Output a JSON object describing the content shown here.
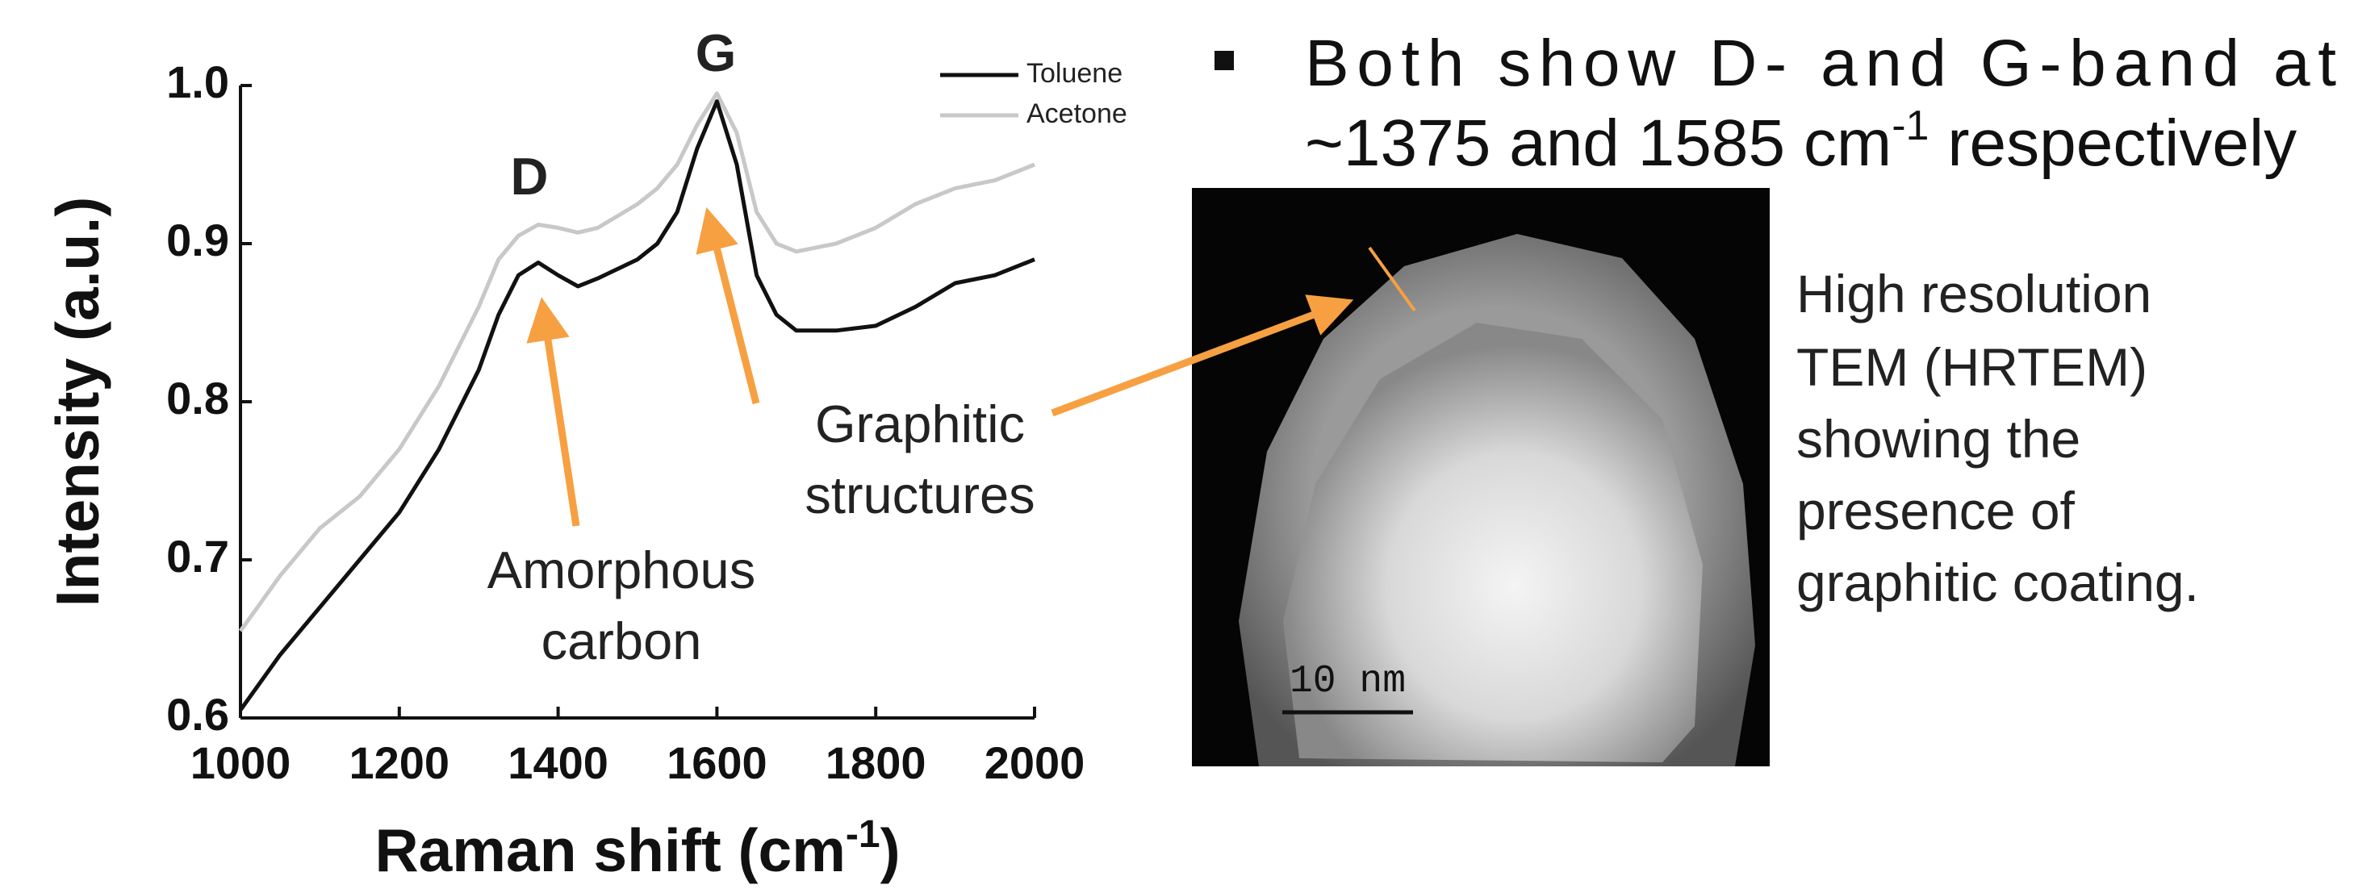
{
  "chart_data": {
    "type": "line",
    "xlabel_parts": [
      "Raman shift (cm",
      "-1",
      ")"
    ],
    "ylabel": "Intensity (a.u.)",
    "x": [
      1000,
      1050,
      1100,
      1150,
      1200,
      1250,
      1300,
      1325,
      1350,
      1375,
      1400,
      1425,
      1450,
      1500,
      1525,
      1550,
      1575,
      1600,
      1625,
      1650,
      1675,
      1700,
      1750,
      1800,
      1850,
      1900,
      1950,
      2000
    ],
    "series": [
      {
        "name": "Toluene",
        "color": "#111111",
        "values": [
          0.605,
          0.64,
          0.67,
          0.7,
          0.73,
          0.77,
          0.82,
          0.855,
          0.88,
          0.888,
          0.88,
          0.873,
          0.878,
          0.89,
          0.9,
          0.92,
          0.96,
          0.99,
          0.95,
          0.88,
          0.855,
          0.845,
          0.845,
          0.848,
          0.86,
          0.875,
          0.88,
          0.89
        ]
      },
      {
        "name": "Acetone",
        "color": "#c8c8c8",
        "values": [
          0.655,
          0.69,
          0.72,
          0.74,
          0.77,
          0.81,
          0.86,
          0.89,
          0.905,
          0.912,
          0.91,
          0.907,
          0.91,
          0.925,
          0.935,
          0.95,
          0.975,
          0.995,
          0.97,
          0.92,
          0.9,
          0.895,
          0.9,
          0.91,
          0.925,
          0.935,
          0.94,
          0.95
        ]
      }
    ],
    "xlim": [
      1000,
      2000
    ],
    "xticks": [
      1000,
      1200,
      1400,
      1600,
      1800,
      2000
    ],
    "ylim": [
      0.6,
      1.0
    ],
    "yticks": [
      0.6,
      0.7,
      0.8,
      0.9,
      {
        "value": 1.0,
        "label": "1.0"
      }
    ],
    "legend": "upper-right",
    "annotations": [
      {
        "lines": [
          "D"
        ]
      },
      {
        "lines": [
          "G"
        ]
      },
      {
        "lines": [
          "Amorphous",
          "carbon"
        ]
      },
      {
        "lines": [
          "Graphitic",
          "structures"
        ]
      }
    ]
  },
  "bullet": {
    "line1": "Both show D- and G-band at",
    "line2": "~1375 and 1585 cm",
    "sup": "-1",
    "line2_end": " respectively"
  },
  "image": {
    "scale_bar": "10 nm"
  },
  "caption": [
    "High resolution",
    "TEM (HRTEM)",
    "showing the",
    "presence of",
    "graphitic coating."
  ]
}
